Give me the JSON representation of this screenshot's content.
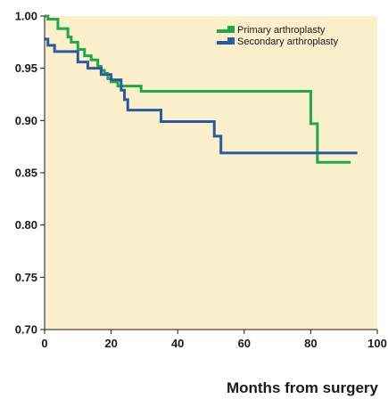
{
  "chart_data": {
    "type": "line",
    "title": "",
    "xlabel": "Months from surgery",
    "ylabel": "",
    "xlim": [
      0,
      100
    ],
    "ylim": [
      0.7,
      1.0
    ],
    "x_ticks": [
      0,
      20,
      40,
      60,
      80,
      100
    ],
    "y_ticks": [
      "0.70",
      "0.75",
      "0.80",
      "0.85",
      "0.90",
      "0.95",
      "1.00"
    ],
    "grid": false,
    "background_color": "#fcefcc",
    "legend_position": "top-right",
    "series": [
      {
        "name": "Primary arthroplasty",
        "color": "#22a84a",
        "line_style": "step",
        "points": [
          [
            0,
            1.0
          ],
          [
            1,
            0.997
          ],
          [
            4,
            0.988
          ],
          [
            7,
            0.98
          ],
          [
            8,
            0.975
          ],
          [
            10,
            0.968
          ],
          [
            12,
            0.962
          ],
          [
            14,
            0.958
          ],
          [
            16,
            0.952
          ],
          [
            17,
            0.948
          ],
          [
            18,
            0.945
          ],
          [
            19,
            0.94
          ],
          [
            20,
            0.937
          ],
          [
            22,
            0.933
          ],
          [
            29,
            0.928
          ],
          [
            78,
            0.928
          ],
          [
            80,
            0.897
          ],
          [
            82,
            0.86
          ],
          [
            92,
            0.86
          ]
        ]
      },
      {
        "name": "Secondary arthroplasty",
        "color": "#2c5aa0",
        "line_style": "step",
        "points": [
          [
            0,
            0.978
          ],
          [
            1,
            0.972
          ],
          [
            3,
            0.966
          ],
          [
            10,
            0.956
          ],
          [
            13,
            0.95
          ],
          [
            17,
            0.944
          ],
          [
            20,
            0.939
          ],
          [
            23,
            0.929
          ],
          [
            24,
            0.92
          ],
          [
            25,
            0.91
          ],
          [
            35,
            0.899
          ],
          [
            51,
            0.885
          ],
          [
            53,
            0.869
          ],
          [
            94,
            0.869
          ]
        ]
      }
    ]
  }
}
